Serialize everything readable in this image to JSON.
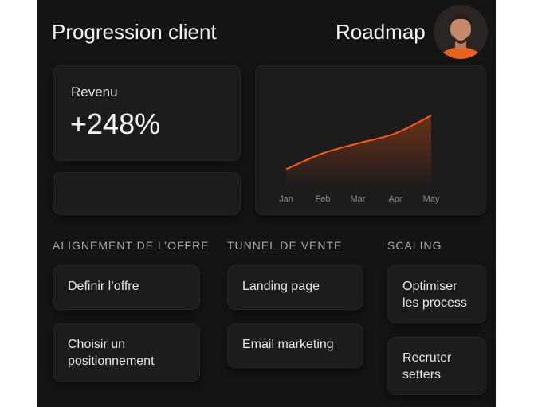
{
  "header": {
    "title": "Progression client",
    "roadmap": "Roadmap"
  },
  "revenue": {
    "label": "Revenu",
    "value": "+248%"
  },
  "chart_data": {
    "type": "line",
    "categories": [
      "Jan",
      "Feb",
      "Mar",
      "Apr",
      "May"
    ],
    "values": [
      18,
      34,
      44,
      54,
      72
    ],
    "ylim": [
      0,
      100
    ],
    "color": "#ff5a14"
  },
  "columns": [
    {
      "title": "ALIGNEMENT DE L’OFFRE",
      "cards": [
        {
          "lines": [
            "Definir l’offre"
          ]
        },
        {
          "lines": [
            "Choisir un",
            "positionnement"
          ]
        }
      ]
    },
    {
      "title": "TUNNEL DE VENTE",
      "cards": [
        {
          "lines": [
            "Landing page"
          ]
        },
        {
          "lines": [
            "Email marketing"
          ]
        }
      ]
    },
    {
      "title": "SCALING",
      "cards": [
        {
          "lines": [
            "Optimiser",
            "les process"
          ]
        },
        {
          "lines": [
            "Recruter",
            "setters"
          ]
        }
      ]
    }
  ]
}
